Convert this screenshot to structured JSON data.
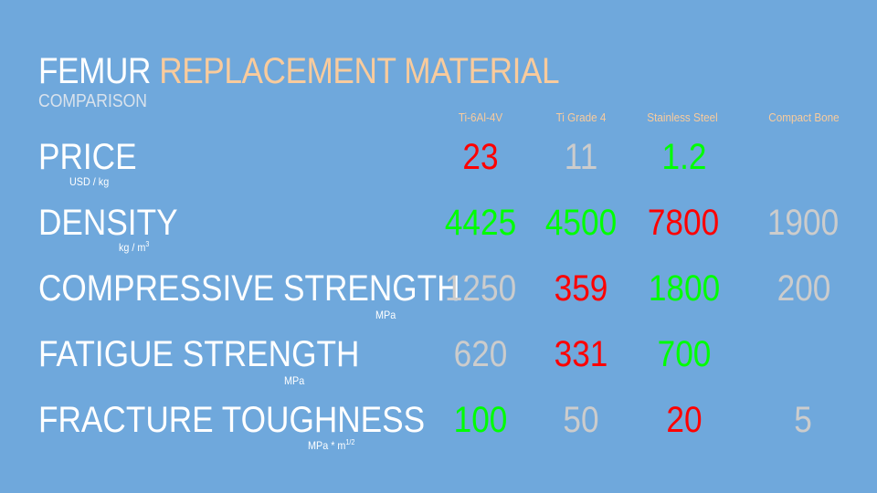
{
  "title": {
    "part1": "FEMUR ",
    "part2": "REPLACEMENT MATERIAL"
  },
  "subtitle": "COMPARISON",
  "columns": [
    "Ti-6Al-4V",
    "Ti Grade 4",
    "Stainless Steel",
    "Compact Bone"
  ],
  "rows": [
    {
      "label": "PRICE",
      "unit": "USD / kg",
      "unit_sup": "",
      "values": [
        "23",
        "11",
        "1.2",
        ""
      ]
    },
    {
      "label": "DENSITY",
      "unit": "kg / m",
      "unit_sup": "3",
      "values": [
        "4425",
        "4500",
        "7800",
        "1900"
      ]
    },
    {
      "label": "COMPRESSIVE STRENGTH",
      "unit": "MPa",
      "unit_sup": "",
      "values": [
        "1250",
        "359",
        "1800",
        "200"
      ]
    },
    {
      "label": "FATIGUE STRENGTH",
      "unit": "MPa",
      "unit_sup": "",
      "values": [
        "620",
        "331",
        "700",
        ""
      ]
    },
    {
      "label": "FRACTURE TOUGHNESS",
      "unit": "MPa * m",
      "unit_sup": "1/2",
      "values": [
        "100",
        "50",
        "20",
        "5"
      ]
    }
  ],
  "value_status": [
    [
      "bad",
      "neutral",
      "good",
      "none"
    ],
    [
      "good",
      "good",
      "bad",
      "neutral"
    ],
    [
      "neutral",
      "bad",
      "good",
      "neutral"
    ],
    [
      "neutral",
      "bad",
      "good",
      "none"
    ],
    [
      "good",
      "neutral",
      "bad",
      "neutral"
    ]
  ],
  "colors": {
    "background": "#6fa8dc",
    "title": "#ffffff",
    "accent": "#f9cb9c",
    "good": "#00ff00",
    "bad": "#ff0000",
    "neutral": "#cccccc"
  }
}
